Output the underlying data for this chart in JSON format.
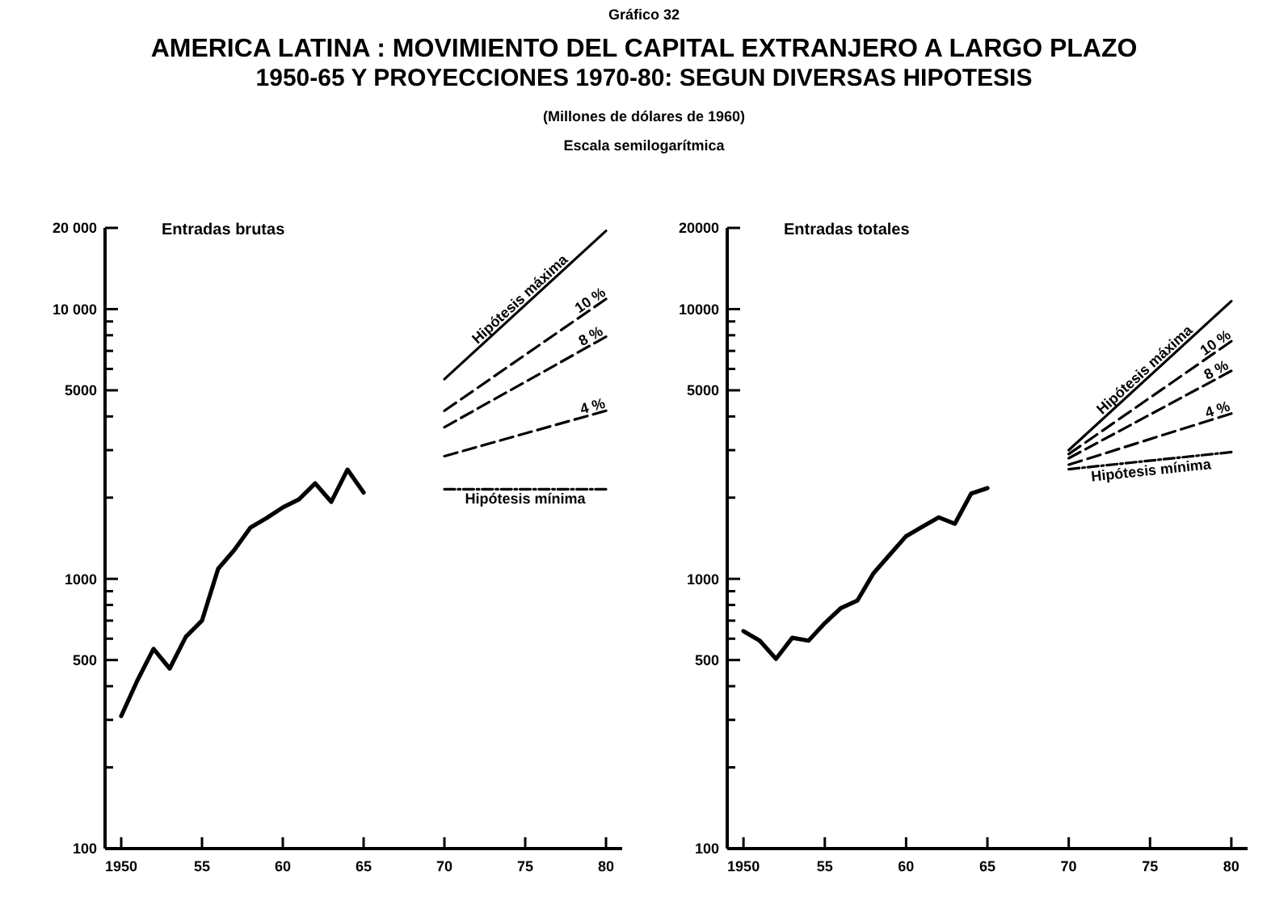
{
  "chart_data": [
    {
      "type": "line",
      "title": "AMERICA LATINA : MOVIMIENTO DEL CAPITAL EXTRANJERO A LARGO PLAZO\n1950-65  Y  PROYECCIONES 1970-80:  SEGUN DIVERSAS HIPOTESIS",
      "subtitle": "(Millones de dólares de 1960)",
      "annotations": [
        "Gráfico 32",
        "Escala semilogarítmica",
        "Entradas brutas"
      ],
      "log": "y",
      "xlim": [
        1949,
        1981
      ],
      "ylim": [
        100,
        20000
      ],
      "xticks": [
        {
          "value": 1950,
          "label": "1950"
        },
        {
          "value": 1955,
          "label": "55"
        },
        {
          "value": 1960,
          "label": "60"
        },
        {
          "value": 1965,
          "label": "65"
        },
        {
          "value": 1970,
          "label": "70"
        },
        {
          "value": 1975,
          "label": "75"
        },
        {
          "value": 1980,
          "label": "80"
        }
      ],
      "yticks": [
        100,
        {
          "value": 200,
          "label": null
        },
        {
          "value": 300,
          "label": null
        },
        {
          "value": 400,
          "label": null
        },
        500,
        {
          "value": 600,
          "label": null
        },
        {
          "value": 700,
          "label": null
        },
        {
          "value": 800,
          "label": null
        },
        {
          "value": 900,
          "label": null
        },
        1000,
        {
          "value": 2000,
          "label": null
        },
        {
          "value": 3000,
          "label": null
        },
        {
          "value": 4000,
          "label": null
        },
        5000,
        {
          "value": 6000,
          "label": null
        },
        {
          "value": 7000,
          "label": null
        },
        {
          "value": 8000,
          "label": null
        },
        {
          "value": 9000,
          "label": null
        },
        {
          "value": 10000,
          "label": "10 000"
        },
        {
          "value": 20000,
          "label": "20 000"
        }
      ],
      "series": [
        {
          "color": "#000000",
          "line_style": "solid",
          "x": [
            1950,
            1951,
            1952,
            1953,
            1954,
            1955,
            1956,
            1957,
            1958,
            1959,
            1960,
            1961,
            1962,
            1963,
            1964,
            1965
          ],
          "values": [
            310,
            420,
            550,
            465,
            610,
            700,
            1090,
            1280,
            1550,
            1680,
            1840,
            1970,
            2260,
            1930,
            2540,
            2090
          ]
        },
        {
          "name": "Hipótesis máxima",
          "color": "#000000",
          "line_style": "solid",
          "x": [
            1970,
            1980
          ],
          "values": [
            5500,
            19500
          ]
        },
        {
          "name": "10 %",
          "color": "#000000",
          "line_style": "dashed",
          "x": [
            1970,
            1980
          ],
          "values": [
            4200,
            10900
          ]
        },
        {
          "name": "8 %",
          "color": "#000000",
          "line_style": "dashed",
          "x": [
            1970,
            1980
          ],
          "values": [
            3650,
            7900
          ]
        },
        {
          "name": "4 %",
          "color": "#000000",
          "line_style": "dashed",
          "x": [
            1970,
            1980
          ],
          "values": [
            2850,
            4200
          ]
        },
        {
          "name": "Hipótesis mínima",
          "color": "#000000",
          "line_style": "dotted",
          "x": [
            1970,
            1980
          ],
          "values": [
            2150,
            2150
          ]
        }
      ]
    },
    {
      "type": "line",
      "annotations": [
        "Entradas totales"
      ],
      "log": "y",
      "xlim": [
        1949,
        1981
      ],
      "ylim": [
        100,
        20000
      ],
      "xticks": [
        {
          "value": 1950,
          "label": "1950"
        },
        {
          "value": 1955,
          "label": "55"
        },
        {
          "value": 1960,
          "label": "60"
        },
        {
          "value": 1965,
          "label": "65"
        },
        {
          "value": 1970,
          "label": "70"
        },
        {
          "value": 1975,
          "label": "75"
        },
        {
          "value": 1980,
          "label": "80"
        }
      ],
      "yticks": [
        100,
        {
          "value": 200,
          "label": null
        },
        {
          "value": 300,
          "label": null
        },
        {
          "value": 400,
          "label": null
        },
        500,
        {
          "value": 600,
          "label": null
        },
        {
          "value": 700,
          "label": null
        },
        {
          "value": 800,
          "label": null
        },
        {
          "value": 900,
          "label": null
        },
        1000,
        {
          "value": 2000,
          "label": null
        },
        {
          "value": 3000,
          "label": null
        },
        {
          "value": 4000,
          "label": null
        },
        5000,
        {
          "value": 6000,
          "label": null
        },
        {
          "value": 7000,
          "label": null
        },
        {
          "value": 8000,
          "label": null
        },
        {
          "value": 9000,
          "label": null
        },
        10000,
        20000
      ],
      "series": [
        {
          "color": "#000000",
          "line_style": "solid",
          "x": [
            1950,
            1951,
            1952,
            1953,
            1954,
            1955,
            1956,
            1957,
            1958,
            1959,
            1960,
            1961,
            1962,
            1963,
            1964,
            1965
          ],
          "values": [
            640,
            590,
            505,
            605,
            590,
            685,
            780,
            830,
            1050,
            1230,
            1440,
            1560,
            1690,
            1600,
            2070,
            2170
          ]
        },
        {
          "name": "Hipótesis máxima",
          "color": "#000000",
          "line_style": "solid",
          "x": [
            1970,
            1980
          ],
          "values": [
            3000,
            10700
          ]
        },
        {
          "name": "10 %",
          "color": "#000000",
          "line_style": "dashed",
          "x": [
            1970,
            1980
          ],
          "values": [
            2900,
            7600
          ]
        },
        {
          "name": "8 %",
          "color": "#000000",
          "line_style": "dashed",
          "x": [
            1970,
            1980
          ],
          "values": [
            2800,
            5900
          ]
        },
        {
          "name": "4 %",
          "color": "#000000",
          "line_style": "dashed",
          "x": [
            1970,
            1980
          ],
          "values": [
            2650,
            4100
          ]
        },
        {
          "name": "Hipótesis mínima",
          "color": "#000000",
          "line_style": "dotted",
          "x": [
            1970,
            1980
          ],
          "values": [
            2550,
            2950
          ]
        }
      ]
    }
  ]
}
